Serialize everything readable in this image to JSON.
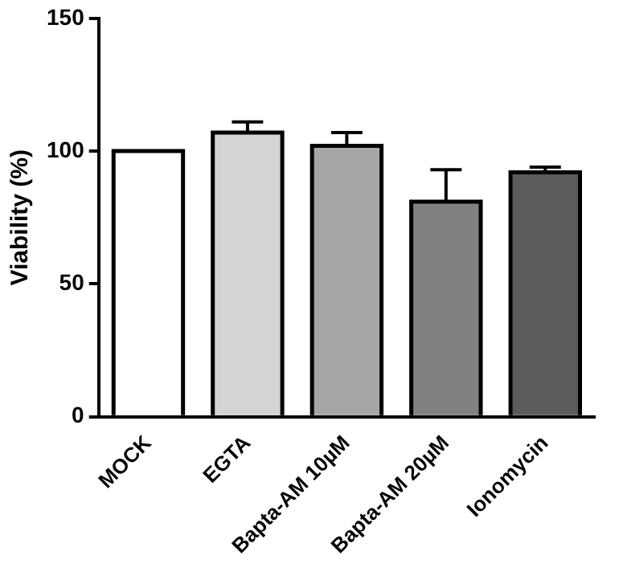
{
  "chart_data": {
    "type": "bar",
    "ylabel": "Viability (%)",
    "categories": [
      "MOCK",
      "EGTA",
      "Bapta-AM 10µM",
      "Bapta-AM 20µM",
      "Ionomycin"
    ],
    "values": [
      100,
      107,
      102,
      81,
      92
    ],
    "colors": [
      "#ffffff",
      "#d4d4d4",
      "#a6a6a8",
      "#818181",
      "#5b5b5b"
    ],
    "errors": [
      null,
      [
        107,
        111
      ],
      [
        102,
        107
      ],
      [
        81,
        93
      ],
      [
        92,
        94
      ]
    ],
    "ylim": [
      0,
      150
    ],
    "yticks": [
      0,
      50,
      100,
      150
    ],
    "grid": false,
    "legend": false
  }
}
